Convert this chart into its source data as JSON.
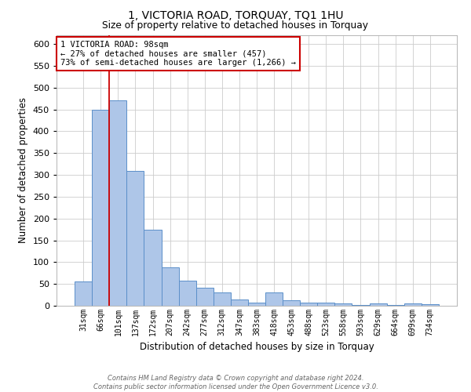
{
  "title": "1, VICTORIA ROAD, TORQUAY, TQ1 1HU",
  "subtitle": "Size of property relative to detached houses in Torquay",
  "xlabel": "Distribution of detached houses by size in Torquay",
  "ylabel": "Number of detached properties",
  "bar_labels": [
    "31sqm",
    "66sqm",
    "101sqm",
    "137sqm",
    "172sqm",
    "207sqm",
    "242sqm",
    "277sqm",
    "312sqm",
    "347sqm",
    "383sqm",
    "418sqm",
    "453sqm",
    "488sqm",
    "523sqm",
    "558sqm",
    "593sqm",
    "629sqm",
    "664sqm",
    "699sqm",
    "734sqm"
  ],
  "bar_values": [
    55,
    450,
    470,
    310,
    175,
    88,
    58,
    42,
    30,
    15,
    8,
    30,
    13,
    8,
    8,
    5,
    2,
    6,
    1,
    5,
    4
  ],
  "bar_color": "#aec6e8",
  "bar_edge_color": "#5b8fc9",
  "ylim": [
    0,
    620
  ],
  "yticks": [
    0,
    50,
    100,
    150,
    200,
    250,
    300,
    350,
    400,
    450,
    500,
    550,
    600
  ],
  "vline_x_index": 2,
  "vline_color": "#cc0000",
  "annotation_title": "1 VICTORIA ROAD: 98sqm",
  "annotation_line1": "← 27% of detached houses are smaller (457)",
  "annotation_line2": "73% of semi-detached houses are larger (1,266) →",
  "annotation_box_color": "#ffffff",
  "annotation_box_edge": "#cc0000",
  "footer_line1": "Contains HM Land Registry data © Crown copyright and database right 2024.",
  "footer_line2": "Contains public sector information licensed under the Open Government Licence v3.0.",
  "background_color": "#ffffff",
  "grid_color": "#cccccc"
}
